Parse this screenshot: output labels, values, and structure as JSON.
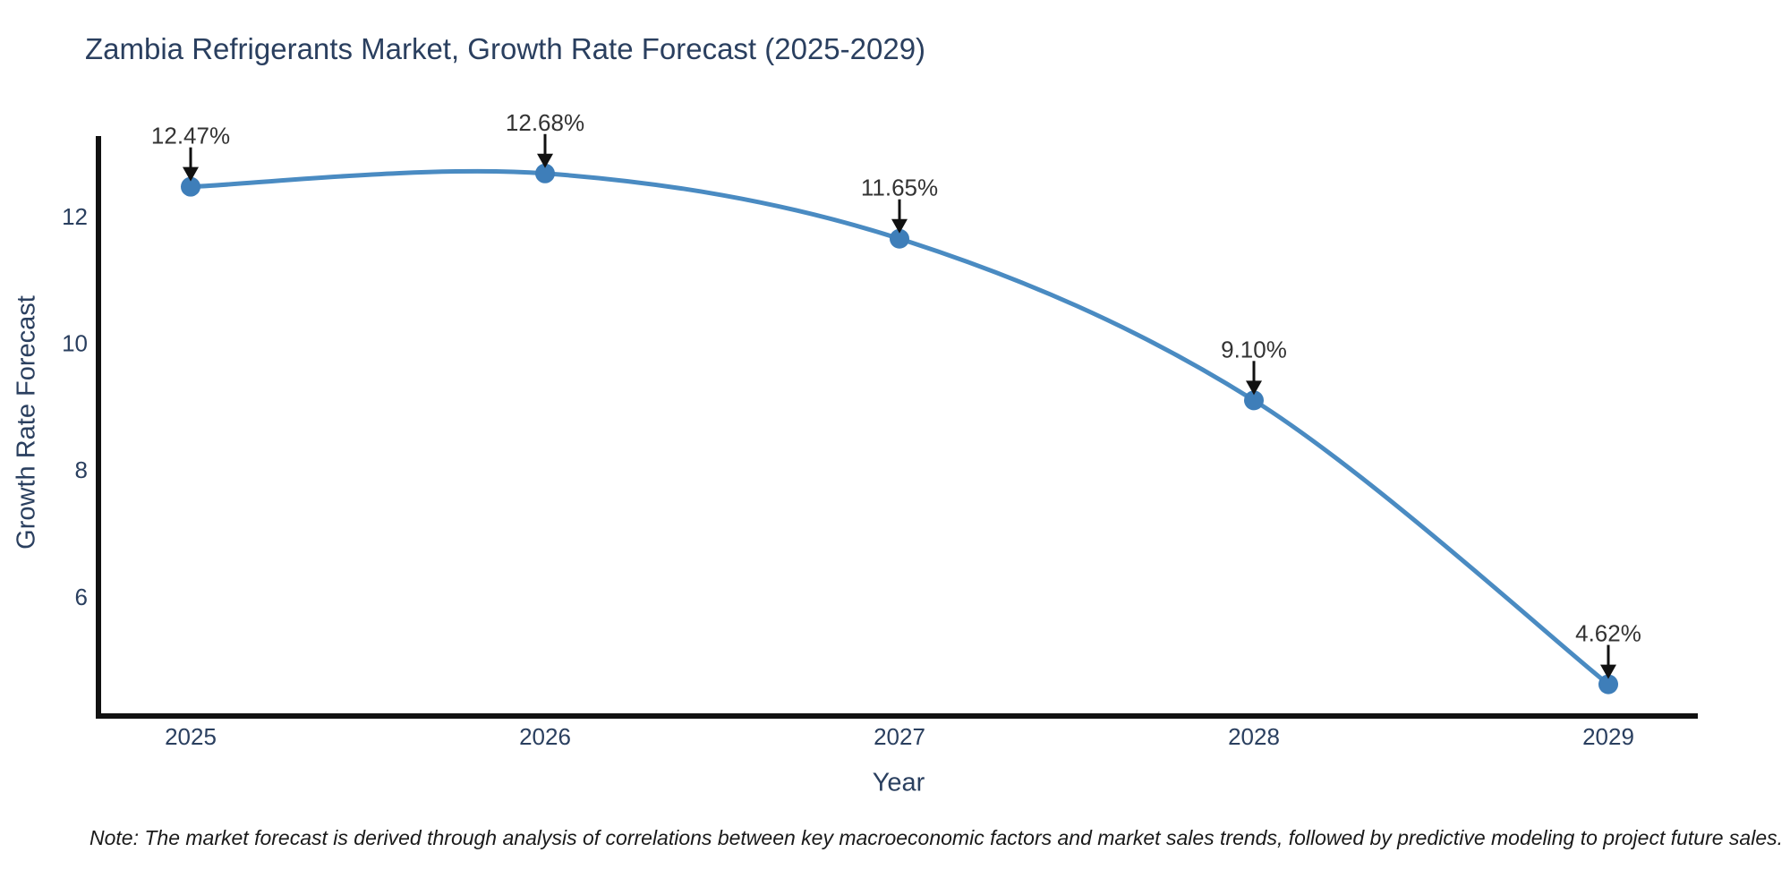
{
  "chart_data": {
    "type": "line",
    "title": "Zambia Refrigerants Market, Growth Rate Forecast (2025-2029)",
    "xlabel": "Year",
    "ylabel": "Growth Rate Forecast",
    "categories": [
      2025,
      2026,
      2027,
      2028,
      2029
    ],
    "series": [
      {
        "name": "Growth Rate Forecast",
        "values": [
          12.47,
          12.68,
          11.65,
          9.1,
          4.62
        ]
      }
    ],
    "point_labels": [
      "12.47%",
      "12.68%",
      "11.65%",
      "9.10%",
      "4.62%"
    ],
    "line_shape": "spline",
    "show_markers": true,
    "annotation_arrows": true,
    "ylim": [
      4.12,
      13.27
    ],
    "yticks": [
      6,
      8,
      10,
      12
    ],
    "grid": false,
    "legend_position": "none",
    "note": "Note: The market forecast is derived through analysis of correlations between key macroeconomic factors and market sales trends, followed by predictive modeling to project future sales.",
    "colors": {
      "line": "#4a8bc2",
      "marker": "#3e7eb9",
      "axis_line": "#111111",
      "arrow": "#111111",
      "title_text": "#2a3f5f",
      "tick_text": "#2a3f5f",
      "annotation_text": "#333333",
      "note_text": "#1a1a1a",
      "background": "#ffffff"
    }
  }
}
